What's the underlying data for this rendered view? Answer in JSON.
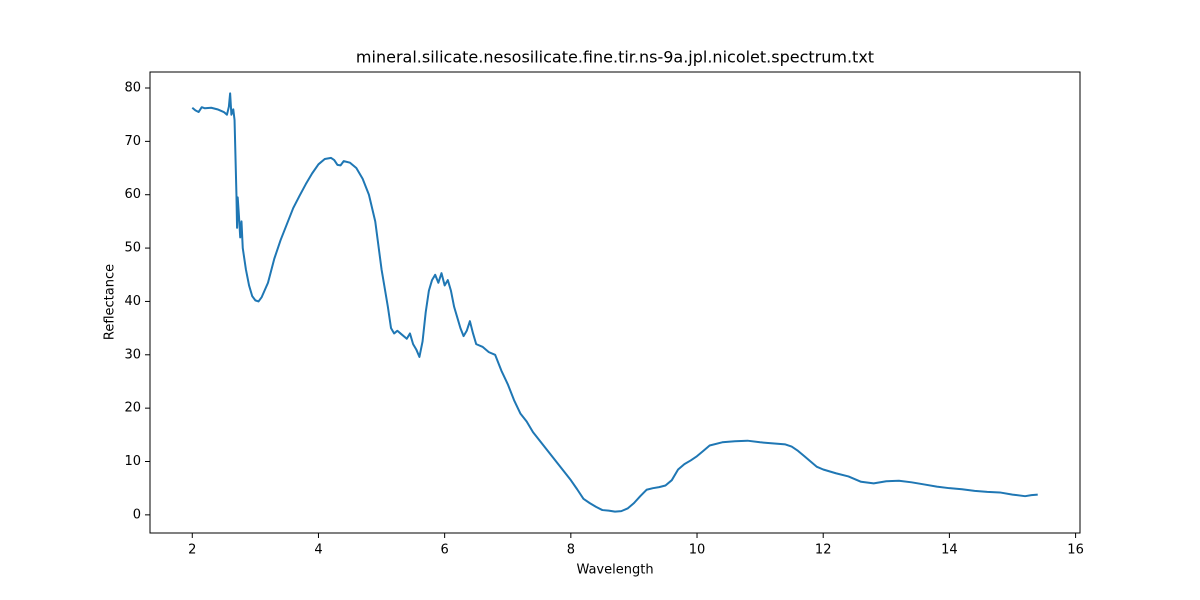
{
  "chart_data": {
    "type": "line",
    "title": "mineral.silicate.nesosilicate.fine.tir.ns-9a.jpl.nicolet.spectrum.txt",
    "x_label": "Wavelength",
    "y_label": "Reflectance",
    "xlim": [
      1.33,
      16.07
    ],
    "ylim": [
      -3.4,
      83.0
    ],
    "xticks": [
      2,
      4,
      6,
      8,
      10,
      12,
      14,
      16
    ],
    "yticks": [
      0,
      10,
      20,
      30,
      40,
      50,
      60,
      70,
      80
    ],
    "grid": false,
    "x": [
      2.0,
      2.05,
      2.1,
      2.15,
      2.2,
      2.3,
      2.4,
      2.5,
      2.55,
      2.58,
      2.6,
      2.62,
      2.65,
      2.67,
      2.7,
      2.71,
      2.72,
      2.74,
      2.76,
      2.78,
      2.8,
      2.85,
      2.9,
      2.95,
      3.0,
      3.05,
      3.1,
      3.2,
      3.3,
      3.4,
      3.5,
      3.6,
      3.7,
      3.8,
      3.9,
      4.0,
      4.1,
      4.2,
      4.25,
      4.3,
      4.35,
      4.4,
      4.5,
      4.6,
      4.7,
      4.8,
      4.9,
      5.0,
      5.1,
      5.15,
      5.2,
      5.25,
      5.3,
      5.4,
      5.45,
      5.5,
      5.55,
      5.6,
      5.65,
      5.7,
      5.75,
      5.8,
      5.85,
      5.9,
      5.95,
      6.0,
      6.05,
      6.1,
      6.15,
      6.2,
      6.25,
      6.3,
      6.35,
      6.4,
      6.45,
      6.5,
      6.6,
      6.7,
      6.8,
      6.9,
      7.0,
      7.1,
      7.2,
      7.3,
      7.4,
      7.5,
      7.6,
      7.7,
      7.8,
      7.9,
      8.0,
      8.1,
      8.2,
      8.3,
      8.4,
      8.5,
      8.6,
      8.7,
      8.8,
      8.9,
      9.0,
      9.1,
      9.2,
      9.3,
      9.4,
      9.5,
      9.6,
      9.7,
      9.8,
      9.9,
      10.0,
      10.1,
      10.2,
      10.4,
      10.6,
      10.8,
      11.0,
      11.2,
      11.4,
      11.5,
      11.6,
      11.7,
      11.8,
      11.9,
      12.0,
      12.2,
      12.4,
      12.6,
      12.8,
      13.0,
      13.2,
      13.4,
      13.6,
      13.8,
      14.0,
      14.2,
      14.4,
      14.6,
      14.8,
      15.0,
      15.2,
      15.3,
      15.4
    ],
    "series": [
      {
        "name": "Reflectance",
        "color": "#1f77b4",
        "values": [
          76.3,
          75.8,
          75.5,
          76.4,
          76.2,
          76.3,
          76.0,
          75.5,
          75.0,
          76.5,
          79.0,
          75.0,
          76.0,
          74.0,
          60.0,
          53.8,
          59.5,
          56.0,
          52.0,
          55.0,
          50.0,
          46.0,
          43.0,
          41.0,
          40.2,
          40.0,
          40.8,
          43.5,
          48.0,
          51.5,
          54.5,
          57.5,
          59.8,
          62.0,
          64.0,
          65.7,
          66.7,
          66.9,
          66.5,
          65.6,
          65.5,
          66.3,
          66.0,
          65.0,
          63.0,
          60.0,
          55.0,
          46.0,
          39.0,
          35.0,
          34.0,
          34.5,
          34.0,
          33.0,
          34.0,
          32.0,
          31.0,
          29.6,
          32.5,
          38.0,
          42.0,
          44.0,
          45.0,
          43.5,
          45.3,
          43.0,
          44.0,
          42.0,
          39.0,
          37.0,
          35.0,
          33.5,
          34.5,
          36.3,
          34.0,
          32.0,
          31.5,
          30.5,
          30.0,
          27.0,
          24.5,
          21.5,
          19.0,
          17.5,
          15.5,
          14.0,
          12.5,
          11.0,
          9.5,
          8.0,
          6.5,
          4.8,
          3.0,
          2.2,
          1.5,
          0.9,
          0.8,
          0.6,
          0.7,
          1.2,
          2.2,
          3.5,
          4.7,
          5.0,
          5.2,
          5.5,
          6.5,
          8.5,
          9.5,
          10.2,
          11.0,
          12.0,
          13.0,
          13.6,
          13.8,
          13.9,
          13.6,
          13.4,
          13.2,
          12.8,
          12.0,
          11.0,
          10.0,
          9.0,
          8.5,
          7.8,
          7.2,
          6.2,
          5.9,
          6.3,
          6.4,
          6.1,
          5.7,
          5.3,
          5.0,
          4.8,
          4.5,
          4.3,
          4.2,
          3.8,
          3.5,
          3.7,
          3.8
        ]
      }
    ]
  }
}
